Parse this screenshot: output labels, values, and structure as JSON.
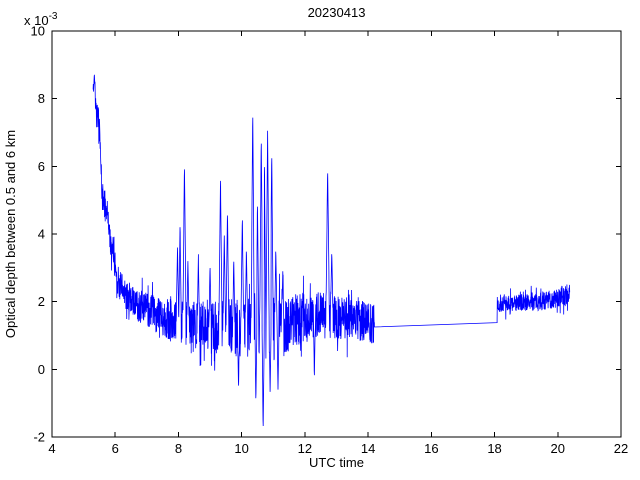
{
  "chart_data": {
    "type": "line",
    "title": "20230413",
    "xlabel": "UTC time",
    "ylabel": "Optical depth between 0.5 and 6 km",
    "y_scale": {
      "mantissa": "x 10",
      "exponent": "-3"
    },
    "values_unit": "10^-3",
    "xlim": [
      4,
      22
    ],
    "ylim_scaled": [
      -2,
      10
    ],
    "xticks": [
      4,
      6,
      8,
      10,
      12,
      14,
      16,
      18,
      20,
      22
    ],
    "yticks": [
      -2,
      0,
      2,
      4,
      6,
      8,
      10
    ],
    "grid": false,
    "legend": null,
    "line_color": "#0000FF",
    "series_description": "Single noisy lidar optical-depth trace: high start ~8.2e-3 at 5.3 UTC decaying to ~1.2e-3 noisy baseline with many spikes (max 7.7e-3 at 10.35 UTC, min -1.85e-3 at 10.68 UTC), smooth flat interpolated line from 14.2 to 18.1 UTC near 1.3e-3, then a second noisy block ~2e-3 from 18.1 to 20.4 UTC.",
    "segments": [
      {
        "kind": "noisy",
        "x_start": 5.3,
        "x_end": 14.2,
        "dx": 0.006,
        "seed": 42,
        "baseline": [
          [
            5.3,
            8.2
          ],
          [
            5.38,
            8.0
          ],
          [
            5.45,
            7.5
          ],
          [
            5.52,
            6.9
          ],
          [
            5.58,
            5.1
          ],
          [
            5.68,
            4.9
          ],
          [
            5.78,
            4.5
          ],
          [
            5.88,
            3.3
          ],
          [
            5.95,
            3.6
          ],
          [
            6.05,
            2.7
          ],
          [
            6.25,
            2.3
          ],
          [
            6.55,
            2.0
          ],
          [
            7.0,
            1.75
          ],
          [
            7.5,
            1.55
          ],
          [
            8.0,
            1.4
          ],
          [
            8.5,
            1.3
          ],
          [
            9.0,
            1.25
          ],
          [
            10.0,
            1.2
          ],
          [
            11.0,
            1.2
          ],
          [
            11.5,
            1.35
          ],
          [
            12.0,
            1.55
          ],
          [
            12.5,
            1.6
          ],
          [
            13.0,
            1.5
          ],
          [
            13.5,
            1.5
          ],
          [
            14.2,
            1.3
          ]
        ],
        "amplitude": [
          [
            5.3,
            0.35
          ],
          [
            5.6,
            0.45
          ],
          [
            6.0,
            0.45
          ],
          [
            7.0,
            0.5
          ],
          [
            8.0,
            0.65
          ],
          [
            9.0,
            0.8
          ],
          [
            10.0,
            0.9
          ],
          [
            11.0,
            0.95
          ],
          [
            11.6,
            0.8
          ],
          [
            12.2,
            0.7
          ],
          [
            13.0,
            0.65
          ],
          [
            14.2,
            0.6
          ]
        ]
      },
      {
        "kind": "line",
        "points": [
          [
            14.2,
            1.25
          ],
          [
            18.08,
            1.38
          ]
        ]
      },
      {
        "kind": "noisy",
        "x_start": 18.08,
        "x_end": 20.38,
        "dx": 0.006,
        "seed": 7,
        "baseline": [
          [
            18.08,
            1.9
          ],
          [
            18.6,
            1.95
          ],
          [
            19.2,
            2.0
          ],
          [
            19.8,
            2.05
          ],
          [
            20.38,
            2.2
          ]
        ],
        "amplitude": [
          [
            18.08,
            0.25
          ],
          [
            20.38,
            0.3
          ]
        ]
      }
    ],
    "spikes": [
      [
        5.34,
        8.75,
        0.03
      ],
      [
        7.97,
        3.6,
        0.04
      ],
      [
        8.05,
        4.35,
        0.04
      ],
      [
        8.19,
        6.1,
        0.05
      ],
      [
        8.3,
        3.2,
        0.035
      ],
      [
        8.63,
        3.4,
        0.035
      ],
      [
        9.0,
        3.1,
        0.035
      ],
      [
        9.33,
        5.75,
        0.05
      ],
      [
        9.45,
        4.1,
        0.04
      ],
      [
        9.55,
        4.7,
        0.045
      ],
      [
        9.75,
        3.3,
        0.035
      ],
      [
        10.02,
        4.55,
        0.045
      ],
      [
        10.15,
        3.6,
        0.04
      ],
      [
        10.35,
        7.7,
        0.05
      ],
      [
        10.5,
        5.0,
        0.04
      ],
      [
        10.62,
        6.9,
        0.05
      ],
      [
        10.72,
        6.2,
        0.045
      ],
      [
        10.82,
        7.05,
        0.05
      ],
      [
        10.95,
        6.45,
        0.05
      ],
      [
        11.08,
        3.6,
        0.04
      ],
      [
        11.3,
        2.9,
        0.035
      ],
      [
        12.72,
        5.95,
        0.055
      ],
      [
        12.85,
        3.5,
        0.04
      ],
      [
        9.9,
        -0.6,
        0.03
      ],
      [
        10.45,
        -1.0,
        0.03
      ],
      [
        10.68,
        -1.85,
        0.035
      ],
      [
        10.9,
        -0.8,
        0.03
      ],
      [
        11.15,
        -0.6,
        0.03
      ],
      [
        12.3,
        -0.3,
        0.03
      ]
    ]
  }
}
